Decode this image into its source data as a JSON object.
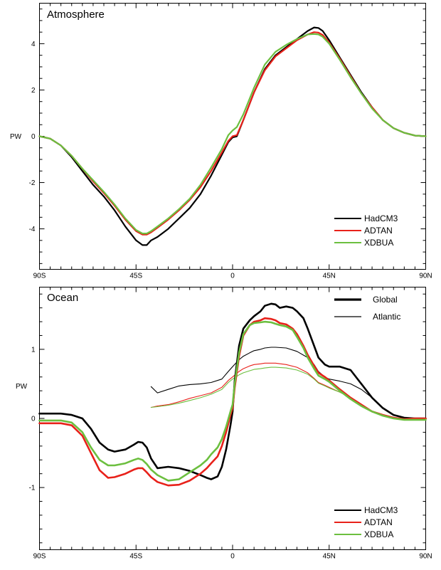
{
  "chart_data": [
    {
      "type": "line",
      "title": "Atmosphere",
      "ylabel": "PW",
      "xlim": [
        -90,
        90
      ],
      "ylim": [
        -5.75,
        5.75
      ],
      "x_ticks": [
        {
          "value": -90,
          "label": "90S"
        },
        {
          "value": -45,
          "label": "45S"
        },
        {
          "value": 0,
          "label": "0"
        },
        {
          "value": 45,
          "label": "45N"
        },
        {
          "value": 90,
          "label": "90N"
        }
      ],
      "y_ticks": [
        {
          "value": -4,
          "label": "-4"
        },
        {
          "value": -2,
          "label": "-2"
        },
        {
          "value": 0,
          "label": "0"
        },
        {
          "value": 2,
          "label": "2"
        },
        {
          "value": 4,
          "label": "4"
        }
      ],
      "legend_position": "bottom-right",
      "series": [
        {
          "name": "HadCM3",
          "color": "#000000",
          "width": 2.2,
          "x": [
            -90,
            -85,
            -80,
            -75,
            -70,
            -65,
            -60,
            -55,
            -50,
            -45,
            -42,
            -40,
            -38,
            -35,
            -30,
            -25,
            -20,
            -15,
            -10,
            -5,
            -2,
            0,
            2,
            5,
            10,
            15,
            20,
            25,
            30,
            35,
            38,
            40,
            42,
            45,
            50,
            55,
            60,
            65,
            70,
            75,
            80,
            85,
            90
          ],
          "y": [
            0,
            -0.1,
            -0.4,
            -0.9,
            -1.5,
            -2.1,
            -2.6,
            -3.2,
            -3.9,
            -4.5,
            -4.7,
            -4.7,
            -4.5,
            -4.35,
            -4.0,
            -3.55,
            -3.1,
            -2.5,
            -1.7,
            -0.8,
            -0.25,
            -0.05,
            0.0,
            0.7,
            1.9,
            2.9,
            3.5,
            3.85,
            4.2,
            4.55,
            4.7,
            4.68,
            4.55,
            4.15,
            3.4,
            2.65,
            1.9,
            1.25,
            0.7,
            0.35,
            0.15,
            0.03,
            0
          ]
        },
        {
          "name": "ADTAN",
          "color": "#e8211a",
          "width": 2.2,
          "x": [
            -90,
            -85,
            -80,
            -75,
            -70,
            -65,
            -60,
            -55,
            -50,
            -45,
            -42,
            -40,
            -38,
            -35,
            -30,
            -25,
            -20,
            -15,
            -10,
            -5,
            -2,
            0,
            2,
            5,
            10,
            15,
            20,
            25,
            30,
            35,
            38,
            40,
            42,
            45,
            50,
            55,
            60,
            65,
            70,
            75,
            80,
            85,
            90
          ],
          "y": [
            0,
            -0.1,
            -0.4,
            -0.85,
            -1.4,
            -1.95,
            -2.45,
            -3.0,
            -3.6,
            -4.1,
            -4.25,
            -4.25,
            -4.15,
            -3.95,
            -3.6,
            -3.2,
            -2.75,
            -2.2,
            -1.5,
            -0.7,
            -0.2,
            0.0,
            0.05,
            0.7,
            1.9,
            2.85,
            3.45,
            3.8,
            4.15,
            4.4,
            4.5,
            4.48,
            4.38,
            4.05,
            3.35,
            2.6,
            1.85,
            1.25,
            0.7,
            0.35,
            0.15,
            0.03,
            0
          ]
        },
        {
          "name": "XDBUA",
          "color": "#6cbf3f",
          "width": 2.2,
          "x": [
            -90,
            -85,
            -80,
            -75,
            -70,
            -65,
            -60,
            -55,
            -50,
            -45,
            -42,
            -40,
            -38,
            -35,
            -30,
            -25,
            -20,
            -15,
            -10,
            -5,
            -2,
            0,
            2,
            5,
            10,
            15,
            20,
            25,
            30,
            35,
            38,
            40,
            42,
            45,
            50,
            55,
            60,
            65,
            70,
            75,
            80,
            85,
            90
          ],
          "y": [
            0,
            -0.1,
            -0.4,
            -0.85,
            -1.4,
            -1.9,
            -2.4,
            -2.95,
            -3.55,
            -4.05,
            -4.2,
            -4.2,
            -4.1,
            -3.9,
            -3.55,
            -3.15,
            -2.7,
            -2.1,
            -1.35,
            -0.55,
            0.05,
            0.25,
            0.4,
            0.95,
            2.1,
            3.1,
            3.65,
            3.95,
            4.2,
            4.4,
            4.42,
            4.4,
            4.3,
            4.0,
            3.3,
            2.55,
            1.85,
            1.2,
            0.7,
            0.35,
            0.15,
            0.03,
            0
          ]
        }
      ]
    },
    {
      "type": "line",
      "title": "Ocean",
      "ylabel": "PW",
      "xlim": [
        -90,
        90
      ],
      "ylim": [
        -1.9,
        1.9
      ],
      "x_ticks": [
        {
          "value": -90,
          "label": "90S"
        },
        {
          "value": -45,
          "label": "45S"
        },
        {
          "value": 0,
          "label": "0"
        },
        {
          "value": 45,
          "label": "45N"
        },
        {
          "value": 90,
          "label": "90N"
        }
      ],
      "y_ticks": [
        {
          "value": -1,
          "label": "-1"
        },
        {
          "value": 0,
          "label": "0"
        },
        {
          "value": 1,
          "label": "1"
        }
      ],
      "style_legend": {
        "position": "top-right",
        "items": [
          {
            "name": "Global",
            "width": 3.2
          },
          {
            "name": "Atlantic",
            "width": 1.2
          }
        ]
      },
      "legend_position": "bottom-right",
      "series": [
        {
          "name": "HadCM3",
          "color": "#000000",
          "width": 2.6,
          "x": [
            -90,
            -80,
            -75,
            -70,
            -66,
            -62,
            -58,
            -55,
            -50,
            -46,
            -44,
            -42,
            -40,
            -38,
            -35,
            -30,
            -25,
            -20,
            -15,
            -12,
            -10,
            -7,
            -5,
            -3,
            -1,
            0,
            1,
            3,
            5,
            8,
            10,
            13,
            15,
            18,
            20,
            22,
            25,
            28,
            30,
            33,
            35,
            38,
            40,
            43,
            45,
            50,
            55,
            60,
            65,
            70,
            75,
            80,
            85,
            90
          ],
          "y": [
            0.07,
            0.07,
            0.05,
            0.0,
            -0.15,
            -0.35,
            -0.45,
            -0.48,
            -0.45,
            -0.38,
            -0.34,
            -0.35,
            -0.42,
            -0.58,
            -0.72,
            -0.7,
            -0.72,
            -0.76,
            -0.82,
            -0.86,
            -0.88,
            -0.84,
            -0.7,
            -0.45,
            -0.1,
            0.1,
            0.55,
            1.05,
            1.3,
            1.42,
            1.48,
            1.55,
            1.63,
            1.66,
            1.65,
            1.6,
            1.62,
            1.6,
            1.55,
            1.45,
            1.3,
            1.05,
            0.88,
            0.78,
            0.75,
            0.75,
            0.7,
            0.5,
            0.3,
            0.15,
            0.05,
            0.01,
            0.0,
            0.0
          ]
        },
        {
          "name": "ADTAN",
          "color": "#e8211a",
          "width": 2.6,
          "x": [
            -90,
            -80,
            -75,
            -70,
            -66,
            -62,
            -58,
            -55,
            -50,
            -46,
            -44,
            -42,
            -40,
            -38,
            -35,
            -30,
            -25,
            -20,
            -15,
            -12,
            -10,
            -7,
            -5,
            -3,
            -1,
            0,
            1,
            3,
            5,
            8,
            10,
            13,
            15,
            18,
            20,
            22,
            25,
            28,
            30,
            33,
            35,
            38,
            40,
            43,
            45,
            50,
            55,
            60,
            65,
            70,
            75,
            80,
            85,
            90
          ],
          "y": [
            -0.07,
            -0.07,
            -0.1,
            -0.25,
            -0.5,
            -0.75,
            -0.86,
            -0.85,
            -0.8,
            -0.74,
            -0.72,
            -0.72,
            -0.78,
            -0.85,
            -0.92,
            -0.97,
            -0.96,
            -0.9,
            -0.8,
            -0.72,
            -0.65,
            -0.55,
            -0.4,
            -0.2,
            0.05,
            0.15,
            0.45,
            0.9,
            1.2,
            1.35,
            1.4,
            1.42,
            1.45,
            1.44,
            1.42,
            1.38,
            1.36,
            1.3,
            1.22,
            1.05,
            0.92,
            0.76,
            0.66,
            0.6,
            0.55,
            0.42,
            0.3,
            0.2,
            0.1,
            0.05,
            0.01,
            -0.01,
            0.0,
            0.0
          ]
        },
        {
          "name": "XDBUA",
          "color": "#6cbf3f",
          "width": 2.6,
          "x": [
            -90,
            -80,
            -75,
            -70,
            -66,
            -62,
            -58,
            -55,
            -50,
            -46,
            -44,
            -42,
            -40,
            -38,
            -35,
            -30,
            -25,
            -20,
            -15,
            -12,
            -10,
            -7,
            -5,
            -3,
            -1,
            0,
            1,
            3,
            5,
            8,
            10,
            13,
            15,
            18,
            20,
            22,
            25,
            28,
            30,
            33,
            35,
            38,
            40,
            43,
            45,
            50,
            55,
            60,
            65,
            70,
            75,
            80,
            85,
            90
          ],
          "y": [
            -0.03,
            -0.03,
            -0.06,
            -0.2,
            -0.42,
            -0.6,
            -0.68,
            -0.68,
            -0.65,
            -0.6,
            -0.58,
            -0.6,
            -0.66,
            -0.74,
            -0.82,
            -0.9,
            -0.88,
            -0.78,
            -0.68,
            -0.6,
            -0.52,
            -0.42,
            -0.3,
            -0.12,
            0.1,
            0.2,
            0.5,
            0.95,
            1.22,
            1.35,
            1.38,
            1.39,
            1.4,
            1.39,
            1.37,
            1.35,
            1.33,
            1.28,
            1.18,
            1.02,
            0.88,
            0.72,
            0.62,
            0.57,
            0.53,
            0.4,
            0.28,
            0.18,
            0.1,
            0.04,
            0.0,
            -0.02,
            -0.02,
            -0.02
          ]
        },
        {
          "name": "HadCM3 Atlantic",
          "color": "#000000",
          "width": 1.1,
          "x": [
            -38,
            -35,
            -30,
            -25,
            -20,
            -15,
            -10,
            -5,
            -2,
            0,
            3,
            5,
            8,
            10,
            13,
            15,
            18,
            20,
            25,
            30,
            35,
            38,
            40,
            43,
            45,
            50,
            55,
            60,
            65,
            70,
            75,
            80,
            85,
            90
          ],
          "y": [
            0.46,
            0.37,
            0.42,
            0.47,
            0.49,
            0.5,
            0.52,
            0.57,
            0.68,
            0.75,
            0.85,
            0.9,
            0.95,
            0.98,
            1.0,
            1.02,
            1.03,
            1.03,
            1.02,
            0.97,
            0.88,
            0.78,
            0.68,
            0.6,
            0.57,
            0.54,
            0.5,
            0.42,
            0.3,
            0.15,
            0.05,
            0.0,
            0.0,
            0.0
          ]
        },
        {
          "name": "ADTAN Atlantic",
          "color": "#e8211a",
          "width": 1.1,
          "x": [
            -38,
            -35,
            -30,
            -25,
            -20,
            -15,
            -10,
            -5,
            -2,
            0,
            3,
            5,
            8,
            10,
            13,
            15,
            18,
            20,
            25,
            30,
            35,
            38,
            40,
            43,
            45,
            50,
            55,
            60,
            65,
            70,
            75,
            80,
            85,
            90
          ],
          "y": [
            0.16,
            0.18,
            0.2,
            0.24,
            0.29,
            0.33,
            0.37,
            0.45,
            0.55,
            0.6,
            0.68,
            0.72,
            0.76,
            0.78,
            0.79,
            0.8,
            0.8,
            0.8,
            0.78,
            0.74,
            0.66,
            0.58,
            0.52,
            0.48,
            0.45,
            0.38,
            0.3,
            0.2,
            0.1,
            0.04,
            0.01,
            0.0,
            0.0,
            0.0
          ]
        },
        {
          "name": "XDBUA Atlantic",
          "color": "#6cbf3f",
          "width": 1.1,
          "x": [
            -38,
            -35,
            -30,
            -25,
            -20,
            -15,
            -10,
            -5,
            -2,
            0,
            3,
            5,
            8,
            10,
            13,
            15,
            18,
            20,
            25,
            30,
            35,
            38,
            40,
            43,
            45,
            50,
            55,
            60,
            65,
            70,
            75,
            80,
            85,
            90
          ],
          "y": [
            0.16,
            0.17,
            0.19,
            0.22,
            0.26,
            0.3,
            0.35,
            0.42,
            0.52,
            0.57,
            0.63,
            0.66,
            0.69,
            0.71,
            0.72,
            0.73,
            0.74,
            0.74,
            0.73,
            0.7,
            0.64,
            0.57,
            0.51,
            0.47,
            0.44,
            0.38,
            0.3,
            0.2,
            0.1,
            0.04,
            0.01,
            0.0,
            0.0,
            0.0
          ]
        }
      ]
    }
  ]
}
